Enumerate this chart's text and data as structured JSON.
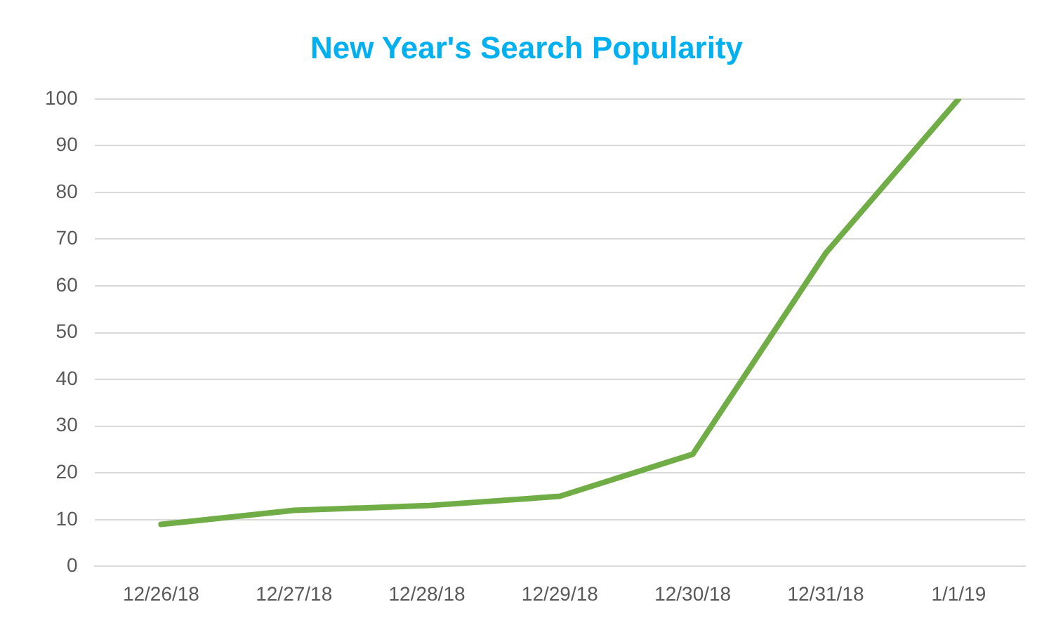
{
  "chart_data": {
    "type": "line",
    "title": "New Year's Search Popularity",
    "categories": [
      "12/26/18",
      "12/27/18",
      "12/28/18",
      "12/29/18",
      "12/30/18",
      "12/31/18",
      "1/1/19"
    ],
    "series": [
      {
        "color": "#70ad47",
        "values": [
          9,
          12,
          13,
          15,
          24,
          67,
          100
        ]
      }
    ],
    "ylim": [
      0,
      100
    ],
    "yticks": [
      0,
      10,
      20,
      30,
      40,
      50,
      60,
      70,
      80,
      90,
      100
    ],
    "grid": "y",
    "legend": false,
    "marker": "none",
    "line_style": "solid"
  }
}
